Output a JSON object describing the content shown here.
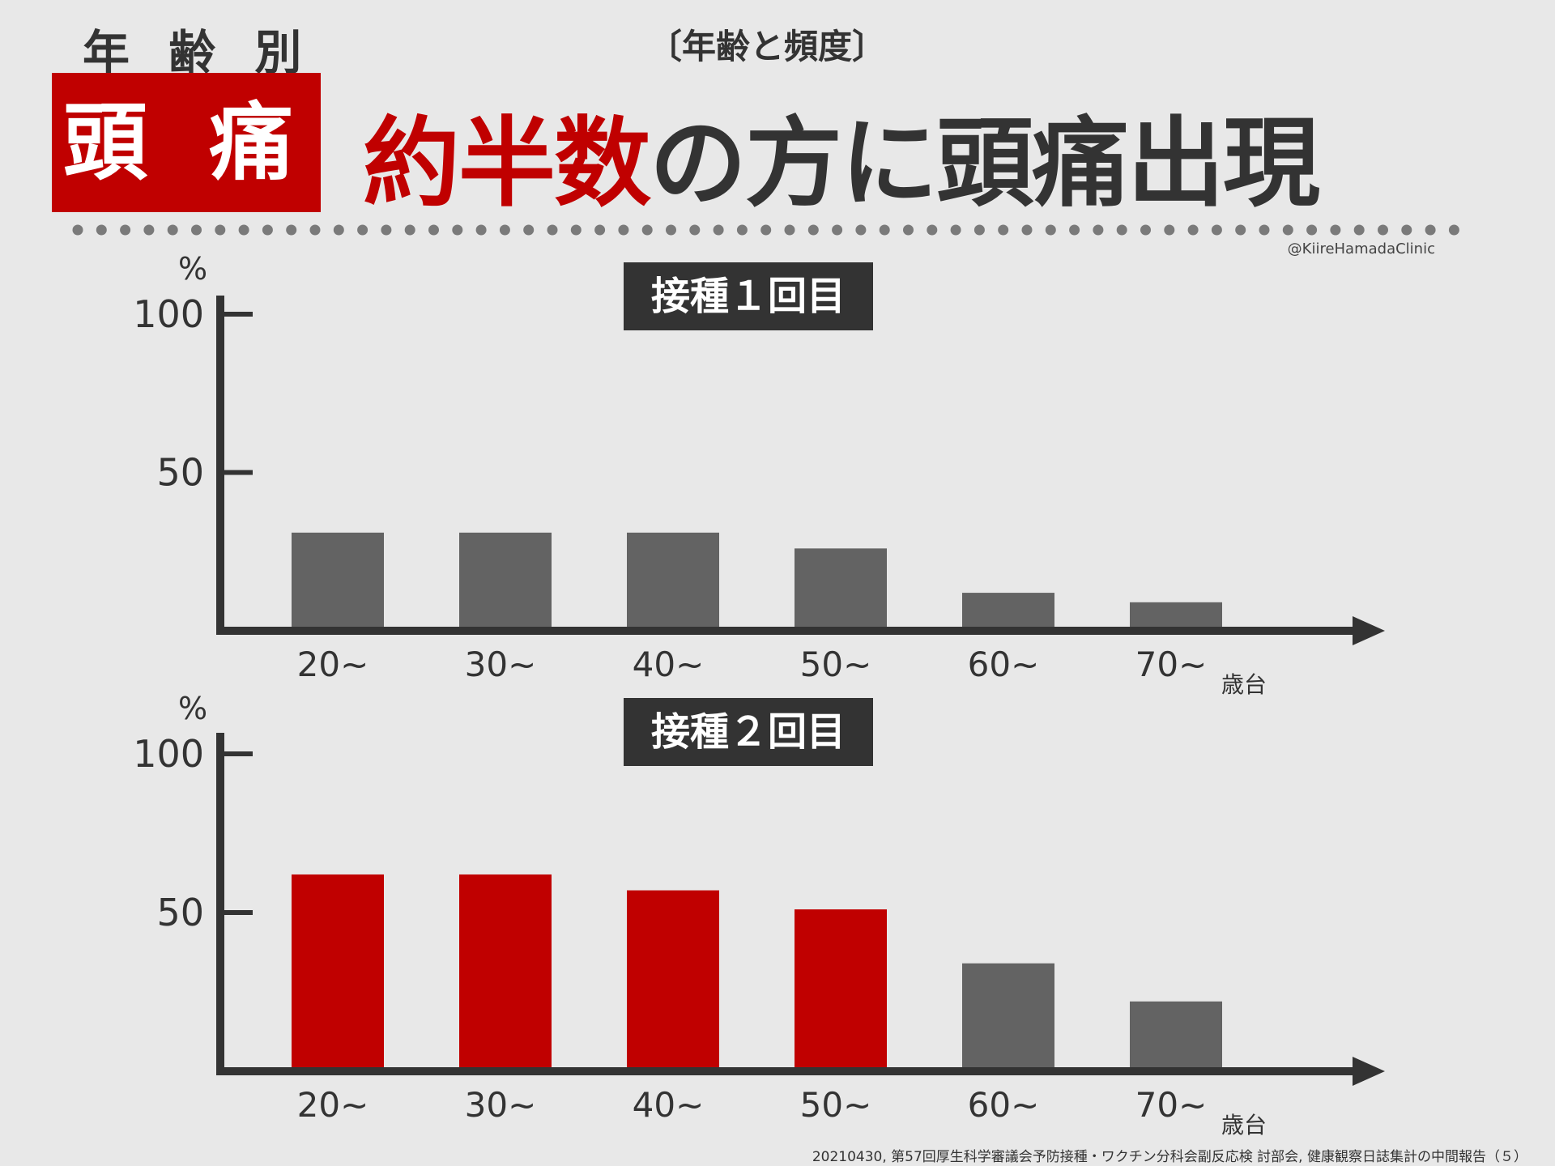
{
  "header": {
    "kicker": "年 齢 別",
    "tag": "頭 痛",
    "topic": "〔年齢と頻度〕",
    "headline_red": "約半数",
    "headline_dark": "の方に頭痛出現"
  },
  "credit": "@KiireHamadaClinic",
  "source": "20210430, 第57回厚生科学審議会予防接種・ワクチン分科会副反応検 討部会, 健康観察日誌集計の中間報告（５）",
  "colors": {
    "accent_red": "#c00000",
    "bar_gray": "#636363",
    "axis": "#333333",
    "label_box": "#333333"
  },
  "chart_data": [
    {
      "type": "bar",
      "title": "接種１回目",
      "ylabel": "%",
      "xlabel": "歳台",
      "ylim": [
        0,
        100
      ],
      "yticks": [
        100,
        50
      ],
      "categories": [
        "20~",
        "30~",
        "40~",
        "50~",
        "60~",
        "70~"
      ],
      "values": [
        31,
        31,
        31,
        26,
        12,
        9
      ],
      "highlight": [
        false,
        false,
        false,
        false,
        false,
        false
      ]
    },
    {
      "type": "bar",
      "title": "接種２回目",
      "ylabel": "%",
      "xlabel": "歳台",
      "ylim": [
        0,
        100
      ],
      "yticks": [
        100,
        50
      ],
      "categories": [
        "20~",
        "30~",
        "40~",
        "50~",
        "60~",
        "70~"
      ],
      "values": [
        62,
        62,
        57,
        51,
        34,
        22
      ],
      "highlight": [
        true,
        true,
        true,
        true,
        false,
        false
      ]
    }
  ]
}
